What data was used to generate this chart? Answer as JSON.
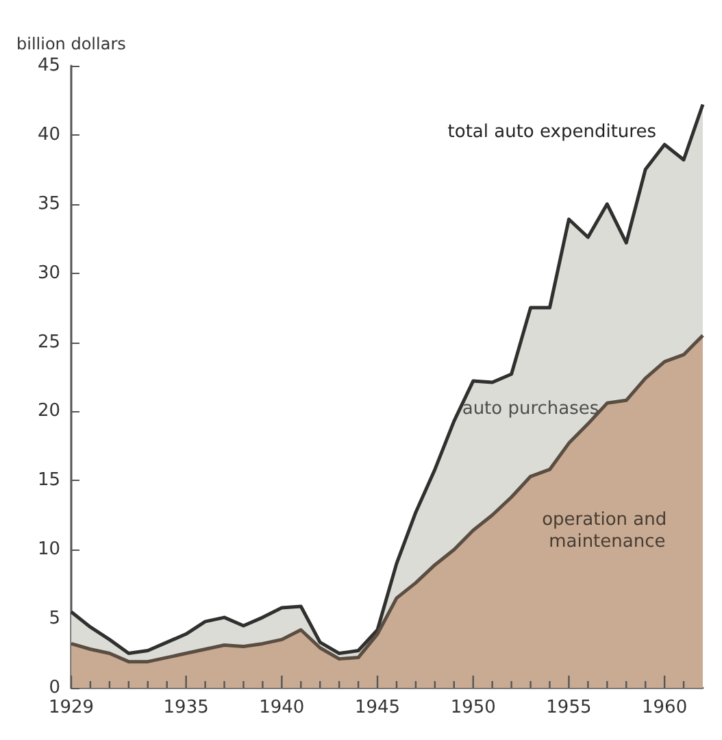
{
  "chart_data": {
    "type": "area",
    "stacked": true,
    "ylabel": "billion dollars",
    "x": [
      1929,
      1930,
      1931,
      1932,
      1933,
      1934,
      1935,
      1936,
      1937,
      1938,
      1939,
      1940,
      1941,
      1942,
      1943,
      1944,
      1945,
      1946,
      1947,
      1948,
      1949,
      1950,
      1951,
      1952,
      1953,
      1954,
      1955,
      1956,
      1957,
      1958,
      1959,
      1960,
      1961,
      1962
    ],
    "series": [
      {
        "name": "operation and maintenance",
        "color": "#c9ab93",
        "values": [
          3.2,
          2.8,
          2.5,
          1.9,
          1.9,
          2.2,
          2.5,
          2.8,
          3.1,
          3.0,
          3.2,
          3.5,
          4.2,
          2.9,
          2.1,
          2.2,
          3.9,
          6.5,
          7.6,
          8.9,
          10.0,
          11.4,
          12.5,
          13.8,
          15.3,
          15.8,
          17.7,
          19.1,
          20.6,
          20.8,
          22.4,
          23.6,
          24.1,
          25.5
        ]
      },
      {
        "name": "auto purchases",
        "color": "#dcdcd7",
        "values": [
          2.3,
          1.6,
          1.0,
          0.6,
          0.8,
          1.1,
          1.4,
          2.0,
          2.0,
          1.5,
          1.9,
          2.3,
          1.7,
          0.4,
          0.4,
          0.5,
          0.3,
          2.5,
          5.1,
          6.9,
          9.3,
          10.8,
          9.6,
          8.9,
          12.2,
          11.7,
          16.2,
          13.5,
          14.4,
          11.4,
          15.1,
          15.7,
          14.1,
          16.7
        ]
      }
    ],
    "annotations": [
      "total auto expenditures"
    ],
    "xlim": [
      1929,
      1962
    ],
    "xticks": [
      1929,
      {
        "value": 1930,
        "label": null
      },
      {
        "value": 1931,
        "label": null
      },
      {
        "value": 1932,
        "label": null
      },
      {
        "value": 1933,
        "label": null
      },
      {
        "value": 1934,
        "label": null
      },
      1935,
      {
        "value": 1936,
        "label": null
      },
      {
        "value": 1937,
        "label": null
      },
      {
        "value": 1938,
        "label": null
      },
      {
        "value": 1939,
        "label": null
      },
      1940,
      {
        "value": 1941,
        "label": null
      },
      {
        "value": 1942,
        "label": null
      },
      {
        "value": 1943,
        "label": null
      },
      {
        "value": 1944,
        "label": null
      },
      1945,
      {
        "value": 1946,
        "label": null
      },
      {
        "value": 1947,
        "label": null
      },
      {
        "value": 1948,
        "label": null
      },
      {
        "value": 1949,
        "label": null
      },
      1950,
      {
        "value": 1951,
        "label": null
      },
      {
        "value": 1952,
        "label": null
      },
      {
        "value": 1953,
        "label": null
      },
      {
        "value": 1954,
        "label": null
      },
      1955,
      {
        "value": 1956,
        "label": null
      },
      {
        "value": 1957,
        "label": null
      },
      {
        "value": 1958,
        "label": null
      },
      {
        "value": 1959,
        "label": null
      },
      1960,
      {
        "value": 1961,
        "label": null
      }
    ],
    "ylim": [
      0,
      45
    ],
    "yticks": [
      0,
      5,
      10,
      15,
      20,
      25,
      30,
      35,
      40,
      45
    ],
    "grid": false,
    "legend": false,
    "marker": "none",
    "line_style": "solid"
  }
}
